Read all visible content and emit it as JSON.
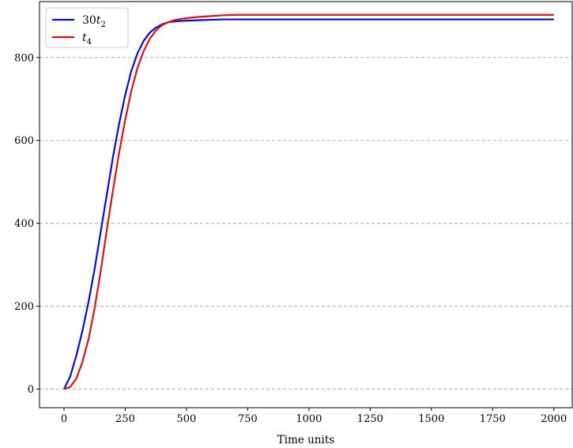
{
  "chart_data": {
    "type": "line",
    "xlabel": "Time units",
    "ylabel": "",
    "title": "",
    "xlim": [
      -100,
      2075
    ],
    "ylim": [
      -45,
      935
    ],
    "xticks": [
      0,
      250,
      500,
      750,
      1000,
      1250,
      1500,
      1750,
      2000
    ],
    "yticks": [
      0,
      200,
      400,
      600,
      800
    ],
    "grid": "y-dashed",
    "legend_position": "top-left",
    "series": [
      {
        "name_main": "30t",
        "name_sub": "2",
        "color": "#0a0ad8",
        "x": [
          0,
          25,
          50,
          75,
          100,
          125,
          150,
          175,
          200,
          225,
          250,
          275,
          300,
          325,
          350,
          375,
          400,
          425,
          450,
          475,
          500,
          550,
          600,
          650,
          700,
          750,
          800,
          900,
          1000,
          1100,
          1200,
          1300,
          1400,
          1500,
          1600,
          1700,
          1800,
          1900,
          2000
        ],
        "y": [
          0,
          30,
          80,
          140,
          210,
          290,
          380,
          470,
          560,
          640,
          710,
          768,
          810,
          840,
          860,
          872,
          880,
          885,
          887,
          888,
          889,
          890,
          891,
          892,
          892,
          892,
          892,
          892,
          892,
          892,
          892,
          892,
          892,
          892,
          892,
          892,
          892,
          892,
          892
        ]
      },
      {
        "name_main": "t",
        "name_sub": "4",
        "color": "#e01010",
        "x": [
          0,
          25,
          50,
          75,
          100,
          125,
          150,
          175,
          200,
          225,
          250,
          275,
          300,
          325,
          350,
          375,
          400,
          425,
          450,
          475,
          500,
          550,
          600,
          650,
          700,
          750,
          800,
          900,
          1000,
          1100,
          1200,
          1300,
          1400,
          1500,
          1600,
          1700,
          1800,
          1900,
          2000
        ],
        "y": [
          0,
          5,
          25,
          65,
          120,
          195,
          285,
          385,
          480,
          570,
          650,
          720,
          775,
          815,
          845,
          865,
          878,
          885,
          890,
          893,
          895,
          898,
          900,
          902,
          903,
          903,
          903,
          903,
          903,
          903,
          903,
          903,
          903,
          903,
          903,
          903,
          903,
          903,
          903
        ]
      }
    ]
  }
}
